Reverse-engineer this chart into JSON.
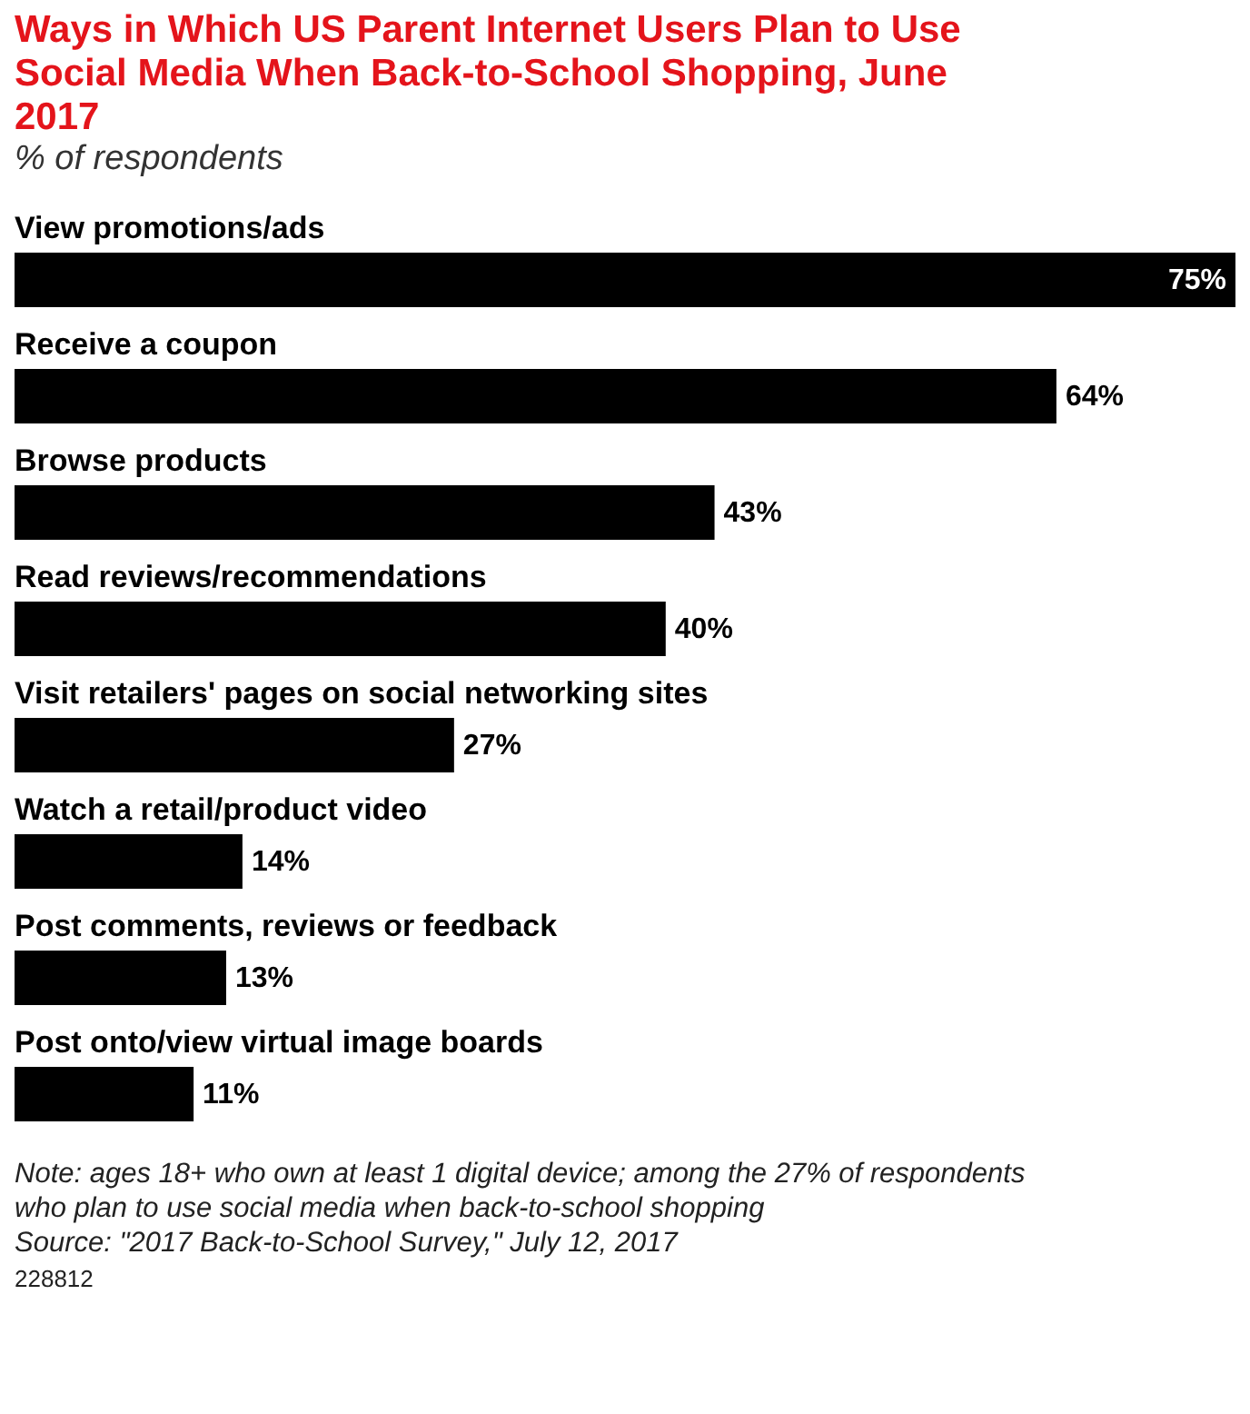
{
  "chart_data": {
    "type": "bar",
    "orientation": "horizontal",
    "title": "Ways in Which US Parent Internet Users Plan to Use Social Media When Back-to-School Shopping, June 2017",
    "subtitle": "% of respondents",
    "categories": [
      "View promotions/ads",
      "Receive a coupon",
      "Browse products",
      "Read reviews/recommendations",
      "Visit retailers' pages on social networking sites",
      "Watch a retail/product video",
      "Post comments, reviews or feedback",
      "Post onto/view virtual image boards"
    ],
    "values": [
      75,
      64,
      43,
      40,
      27,
      14,
      13,
      11
    ],
    "value_labels": [
      "75%",
      "64%",
      "43%",
      "40%",
      "27%",
      "14%",
      "13%",
      "11%"
    ],
    "color": "#000000",
    "annotations": [
      "Note: ages 18+ who own at least 1 digital device; among the 27% of respondents who plan to use social media when back-to-school shopping",
      "Source: \"2017 Back-to-School Survey,\" July 12, 2017",
      "228812"
    ]
  }
}
